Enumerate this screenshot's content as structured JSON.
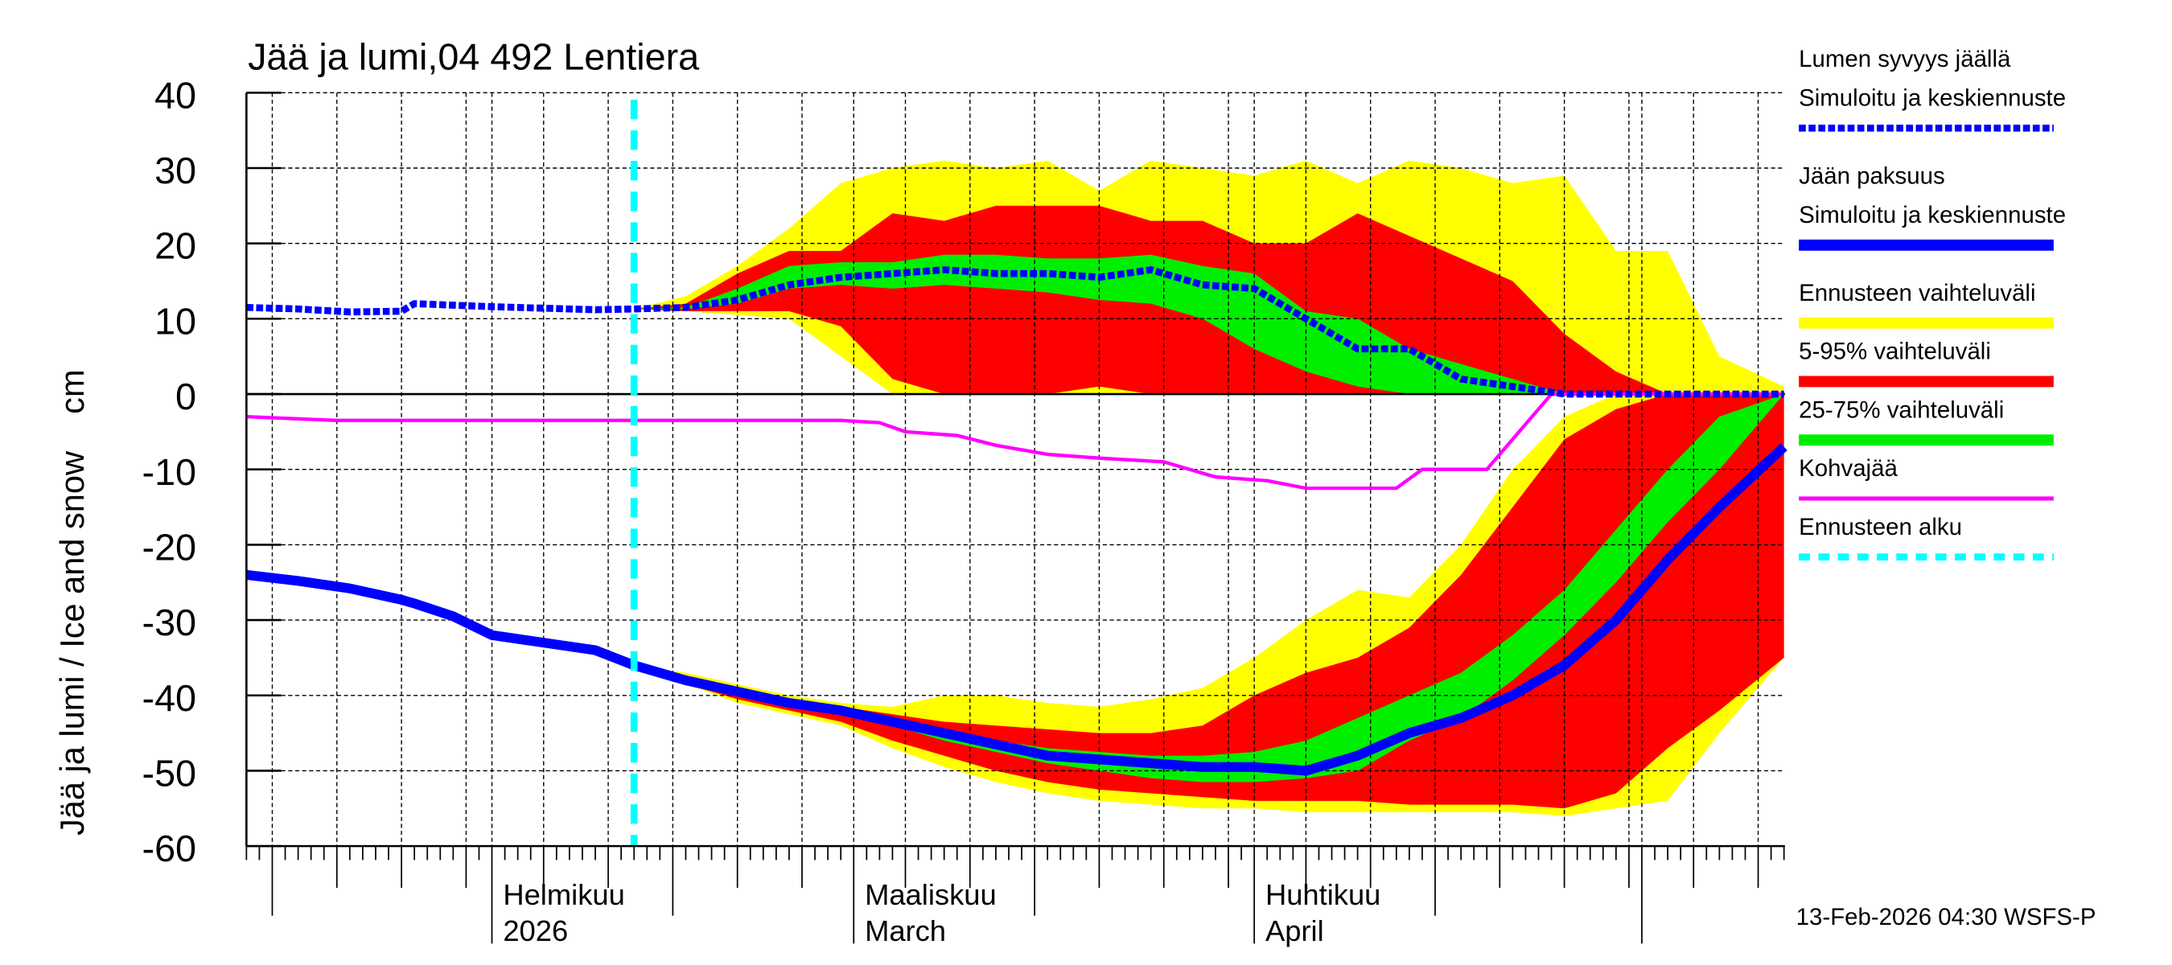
{
  "chart_data": {
    "type": "area",
    "title": "Jää ja lumi,04 492 Lentiera",
    "ylabel": "Jää ja lumi / Ice and snow    cm",
    "ylim": [
      -60,
      40
    ],
    "yticks": [
      40,
      30,
      20,
      10,
      0,
      -10,
      -20,
      -30,
      -40,
      -50,
      -60
    ],
    "xlim": [
      "2026-01-13",
      "2026-05-12"
    ],
    "grid": true,
    "legend_position": "right",
    "month_labels": [
      {
        "date": "2026-02-01",
        "line1": "Helmikuu",
        "line2": "2026"
      },
      {
        "date": "2026-03-01",
        "line1": "Maaliskuu",
        "line2": "March"
      },
      {
        "date": "2026-04-01",
        "line1": "Huhtikuu",
        "line2": "April"
      }
    ],
    "forecast_start": "2026-02-12",
    "timestamp": "13-Feb-2026 04:30 WSFS-P",
    "colors": {
      "snow": "#0000ff",
      "ice": "#0000ff",
      "range_full": "#ffff00",
      "range_5_95": "#ff0000",
      "range_25_75": "#00ee00",
      "slush": "#ff00ff",
      "forecast_start": "#00ffff"
    },
    "legend": [
      {
        "line1": "Lumen syvyys jäällä",
        "line2": "Simuloitu ja keskiennuste",
        "style": "dotted-thick",
        "color": "#0000ff"
      },
      {
        "line1": "Jään paksuus",
        "line2": "Simuloitu ja keskiennuste",
        "style": "solid-thick",
        "color": "#0000ff"
      },
      {
        "line1": "Ennusteen vaihteluväli",
        "style": "band",
        "color": "#ffff00"
      },
      {
        "line1": "5-95% vaihteluväli",
        "style": "band",
        "color": "#ff0000"
      },
      {
        "line1": "25-75% vaihteluväli",
        "style": "band",
        "color": "#00ee00"
      },
      {
        "line1": "Kohvajää",
        "style": "solid",
        "color": "#ff00ff"
      },
      {
        "line1": "Ennusteen alku",
        "style": "dashed",
        "color": "#00ffff"
      }
    ],
    "observed": {
      "dates": [
        "2026-01-13",
        "2026-01-17",
        "2026-01-21",
        "2026-01-25",
        "2026-01-26",
        "2026-01-29",
        "2026-02-01",
        "2026-02-05",
        "2026-02-09",
        "2026-02-12"
      ],
      "snow_depth": [
        11.5,
        11.3,
        10.9,
        11.0,
        12.0,
        11.8,
        11.6,
        11.4,
        11.2,
        11.3
      ],
      "ice_thickness": [
        -24,
        -24.8,
        -25.8,
        -27.3,
        -27.8,
        -29.5,
        -32,
        -33,
        -34,
        -36
      ]
    },
    "forecast": {
      "dates": [
        "2026-02-12",
        "2026-02-16",
        "2026-02-20",
        "2026-02-24",
        "2026-02-28",
        "2026-03-04",
        "2026-03-08",
        "2026-03-12",
        "2026-03-16",
        "2026-03-20",
        "2026-03-24",
        "2026-03-28",
        "2026-04-01",
        "2026-04-05",
        "2026-04-09",
        "2026-04-13",
        "2026-04-17",
        "2026-04-21",
        "2026-04-25",
        "2026-04-29",
        "2026-05-03",
        "2026-05-07",
        "2026-05-12"
      ],
      "snow": {
        "median": [
          11.3,
          11.5,
          12.5,
          14.5,
          15.5,
          16,
          16.5,
          16,
          16,
          15.5,
          16.5,
          14.5,
          14,
          10,
          6,
          6,
          2,
          1,
          0,
          0,
          0,
          0,
          0
        ],
        "full_max": [
          11.3,
          13,
          17,
          22,
          28,
          30,
          31,
          30,
          31,
          27,
          31,
          30,
          29,
          31,
          28,
          31,
          30,
          28,
          29,
          19,
          19,
          5,
          1
        ],
        "full_min": [
          11.3,
          11,
          10.5,
          10,
          5,
          0,
          0,
          0,
          0,
          0,
          0,
          0,
          0,
          0,
          0,
          0,
          0,
          0,
          0,
          0,
          0,
          0,
          0
        ],
        "p95": [
          11.3,
          12,
          16,
          19,
          19,
          24,
          23,
          25,
          25,
          25,
          23,
          23,
          20,
          20,
          24,
          21,
          18,
          15,
          8,
          3,
          0,
          0,
          0
        ],
        "p5": [
          11.3,
          11,
          11,
          11,
          9,
          2,
          0,
          0,
          0,
          1,
          0,
          0,
          0,
          0,
          0,
          0,
          0,
          0,
          0,
          0,
          0,
          0,
          0
        ],
        "p75": [
          11.3,
          11.5,
          14,
          17,
          17.5,
          17.5,
          18.5,
          18.5,
          18,
          18,
          18.5,
          17,
          16,
          11,
          10,
          6,
          4,
          2,
          0,
          0,
          0,
          0,
          0
        ],
        "p25": [
          11.3,
          11.3,
          12,
          14,
          14.5,
          14,
          14.5,
          14,
          13.5,
          12.5,
          12,
          10,
          6,
          3,
          1,
          0,
          0,
          0,
          0,
          0,
          0,
          0,
          0
        ]
      },
      "ice": {
        "median": [
          -36,
          -38,
          -39.5,
          -41,
          -42,
          -43.5,
          -45,
          -46.5,
          -48,
          -48.5,
          -49,
          -49.5,
          -49.5,
          -50,
          -48,
          -45,
          -43,
          -40,
          -36,
          -30,
          -22,
          -15,
          -7
        ],
        "full_max": [
          -36,
          -37,
          -38.5,
          -40,
          -41,
          -41.5,
          -40,
          -40,
          -41,
          -41.5,
          -40.5,
          -39,
          -35,
          -30,
          -26,
          -27,
          -20,
          -10,
          -3,
          0,
          0,
          0,
          0
        ],
        "full_min": [
          -36,
          -38.5,
          -41,
          -42.5,
          -44,
          -47,
          -49.5,
          -51.5,
          -53,
          -54,
          -54.5,
          -55,
          -55,
          -55.5,
          -55.5,
          -55.5,
          -55.5,
          -55.5,
          -56,
          -55,
          -54,
          -45,
          -35
        ],
        "p95": [
          -36,
          -37.5,
          -39,
          -40.5,
          -41.5,
          -42.5,
          -43.5,
          -44,
          -44.5,
          -45,
          -45,
          -44,
          -40,
          -37,
          -35,
          -31,
          -24,
          -15,
          -6,
          -2,
          0,
          0,
          0
        ],
        "p5": [
          -36,
          -38.5,
          -40.5,
          -42,
          -43.5,
          -46,
          -48,
          -50,
          -51.5,
          -52.5,
          -53,
          -53.5,
          -54,
          -54,
          -54,
          -54.5,
          -54.5,
          -54.5,
          -55,
          -53,
          -47,
          -42,
          -35
        ],
        "p75": [
          -36,
          -37.8,
          -39.3,
          -41,
          -42,
          -43.5,
          -44.5,
          -46,
          -47,
          -47.5,
          -48,
          -48,
          -47.5,
          -46,
          -43,
          -40,
          -37,
          -32,
          -26,
          -18,
          -10,
          -3,
          0
        ],
        "p25": [
          -36,
          -38.2,
          -40,
          -41.5,
          -42.5,
          -44,
          -46,
          -47.5,
          -49,
          -50,
          -51,
          -51.5,
          -51.5,
          -51,
          -50,
          -46,
          -43,
          -38,
          -32,
          -25,
          -17,
          -10,
          0
        ]
      }
    },
    "slush_ice": {
      "dates": [
        "2026-01-13",
        "2026-01-20",
        "2026-02-28",
        "2026-03-03",
        "2026-03-05",
        "2026-03-09",
        "2026-03-12",
        "2026-03-16",
        "2026-03-20",
        "2026-03-25",
        "2026-03-29",
        "2026-04-02",
        "2026-04-05",
        "2026-04-12",
        "2026-04-14",
        "2026-04-19",
        "2026-04-24",
        "2026-05-12"
      ],
      "values": [
        -3,
        -3.5,
        -3.5,
        -3.8,
        -5,
        -5.5,
        -6.8,
        -8,
        -8.5,
        -9,
        -11,
        -11.5,
        -12.5,
        -12.5,
        -10,
        -10,
        0,
        0
      ]
    }
  }
}
